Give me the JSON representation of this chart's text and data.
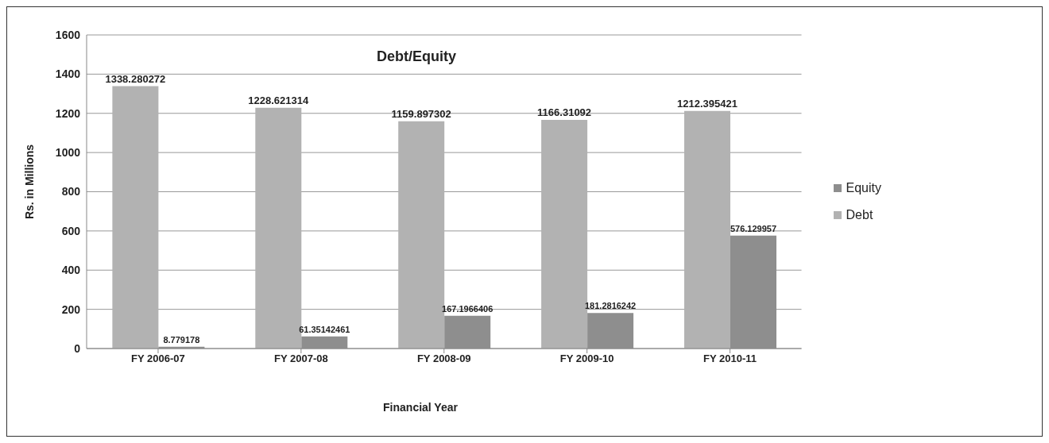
{
  "chart_data": {
    "type": "bar",
    "title": "Debt/Equity",
    "xlabel": "Financial Year",
    "ylabel": "Rs. in Millions",
    "categories": [
      "FY 2006-07",
      "FY 2007-08",
      "FY 2008-09",
      "FY 2009-10",
      "FY 2010-11"
    ],
    "series": [
      {
        "name": "Debt",
        "color": "#b2b2b2",
        "values": [
          1338.280272,
          1228.621314,
          1159.897302,
          1166.31092,
          1212.395421
        ]
      },
      {
        "name": "Equity",
        "color": "#8e8e8e",
        "values": [
          8.779178,
          61.35142461,
          167.1966406,
          181.2816242,
          576.129957
        ]
      }
    ],
    "ylim": [
      0,
      1600
    ],
    "yticks": [
      0,
      200,
      400,
      600,
      800,
      1000,
      1200,
      1400,
      1600
    ],
    "grid": "y",
    "legend": "right",
    "data_labels": true
  }
}
